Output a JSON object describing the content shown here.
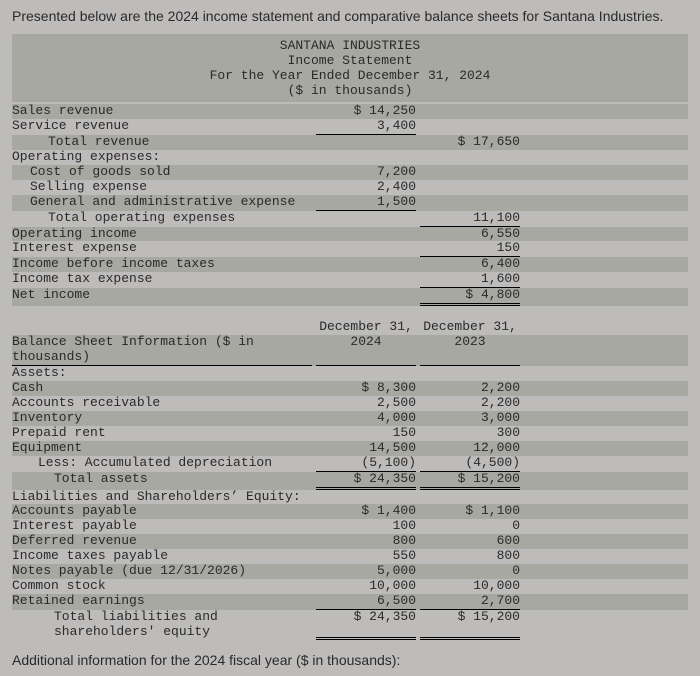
{
  "intro": "Presented below are the 2024 income statement and comparative balance sheets for Santana Industries.",
  "header": {
    "company": "SANTANA INDUSTRIES",
    "stmt": "Income Statement",
    "period": "For the Year Ended December 31, 2024",
    "units": "($ in thousands)"
  },
  "income": {
    "sales_label": "Sales revenue",
    "sales": "$ 14,250",
    "service_label": "Service revenue",
    "service": "3,400",
    "total_rev_label": "Total revenue",
    "total_rev": "$ 17,650",
    "opex_hdr": "Operating expenses:",
    "cogs_label": "Cost of goods sold",
    "cogs": "7,200",
    "sell_label": "Selling expense",
    "sell": "2,400",
    "ga_label": "General and administrative expense",
    "ga": "1,500",
    "total_opex_label": "Total operating expenses",
    "total_opex": "11,100",
    "op_inc_label": "Operating income",
    "op_inc": "6,550",
    "int_exp_label": "Interest expense",
    "int_exp": "150",
    "ibt_label": "Income before income taxes",
    "ibt": "6,400",
    "tax_label": "Income tax expense",
    "tax": "1,600",
    "ni_label": "Net income",
    "ni": "$ 4,800"
  },
  "bs": {
    "title": "Balance Sheet Information ($ in thousands)",
    "col1": "December 31,",
    "col1b": "2024",
    "col2": "December 31,",
    "col2b": "2023",
    "assets_hdr": "Assets:",
    "cash_l": "Cash",
    "cash24": "$ 8,300",
    "cash23": "2,200",
    "ar_l": "Accounts receivable",
    "ar24": "2,500",
    "ar23": "2,200",
    "inv_l": "Inventory",
    "inv24": "4,000",
    "inv23": "3,000",
    "pre_l": "Prepaid rent",
    "pre24": "150",
    "pre23": "300",
    "eq_l": "Equipment",
    "eq24": "14,500",
    "eq23": "12,000",
    "dep_l": "Less: Accumulated depreciation",
    "dep24": "(5,100)",
    "dep23": "(4,500)",
    "ta_l": "Total assets",
    "ta24": "$ 24,350",
    "ta23": "$ 15,200",
    "le_hdr": "Liabilities and Shareholders’ Equity:",
    "ap_l": "Accounts payable",
    "ap24": "$ 1,400",
    "ap23": "$ 1,100",
    "ip_l": "Interest payable",
    "ip24": "100",
    "ip23": "0",
    "dr_l": "Deferred revenue",
    "dr24": "800",
    "dr23": "600",
    "it_l": "Income taxes payable",
    "it24": "550",
    "it23": "800",
    "np_l": "Notes payable (due 12/31/2026)",
    "np24": "5,000",
    "np23": "0",
    "cs_l": "Common stock",
    "cs24": "10,000",
    "cs23": "10,000",
    "re_l": "Retained earnings",
    "re24": "6,500",
    "re23": "2,700",
    "tle_l": "Total liabilities and shareholders' equity",
    "tle24": "$ 24,350",
    "tle23": "$ 15,200"
  },
  "footer": "Additional information for the 2024 fiscal year ($ in thousands):"
}
